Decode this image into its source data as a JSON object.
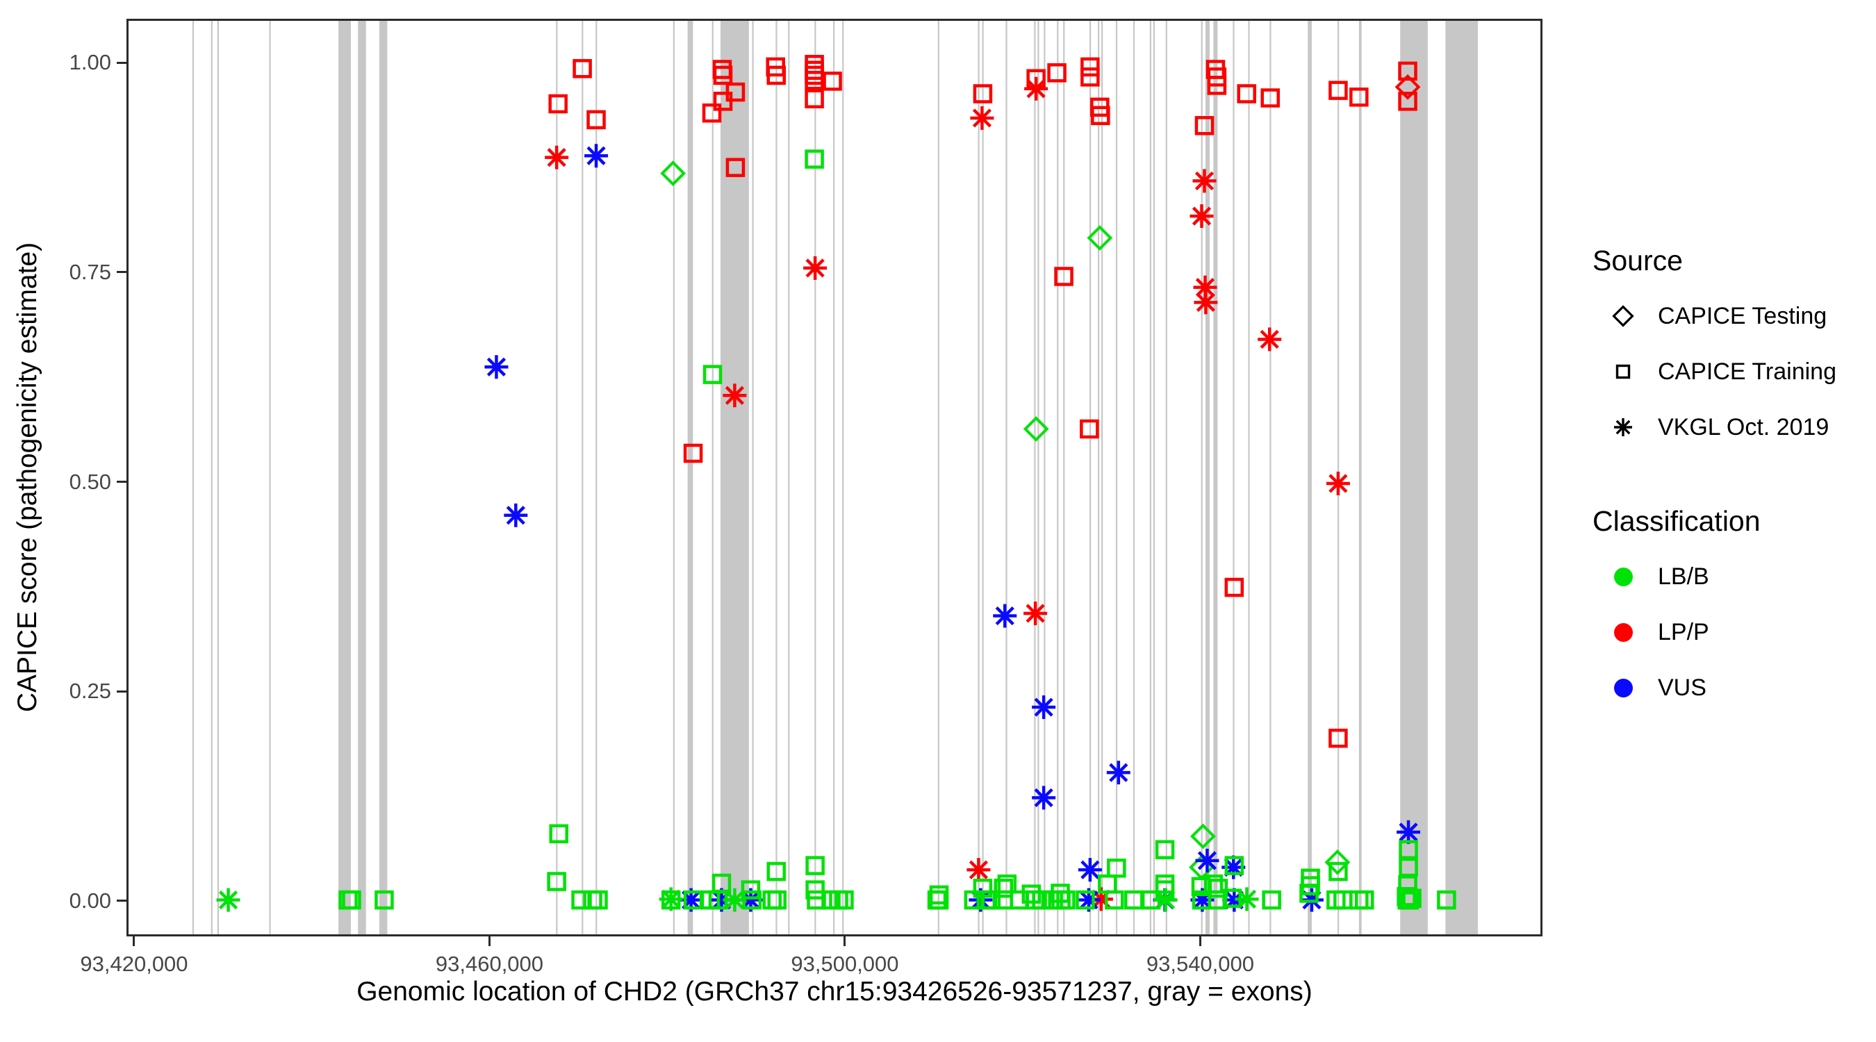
{
  "colors": {
    "lbb": "#00e108",
    "lpp": "#fc0000",
    "vus": "#0a0aff",
    "exon": "#c7c7c7",
    "axis_text": "#474747",
    "axis_line": "#2b2b2b"
  },
  "legend": {
    "source_title": "Source",
    "source_items": [
      {
        "shape": "diamond",
        "label": "CAPICE Testing"
      },
      {
        "shape": "square",
        "label": "CAPICE Training"
      },
      {
        "shape": "asterisk",
        "label": "VKGL Oct. 2019"
      }
    ],
    "classification_title": "Classification",
    "classification_items": [
      {
        "color_key": "lbb",
        "label": "LB/B"
      },
      {
        "color_key": "lpp",
        "label": "LP/P"
      },
      {
        "color_key": "vus",
        "label": "VUS"
      }
    ]
  },
  "chart_data": {
    "type": "scatter",
    "title": "",
    "xlabel": "Genomic location of CHD2 (GRCh37 chr15:93426526-93571237, gray = exons)",
    "ylabel": "CAPICE score (pathogenicity estimate)",
    "x_domain": [
      93419376,
      93578285
    ],
    "y_domain": [
      -0.04,
      1.05
    ],
    "grid": false,
    "legend_position": "right",
    "x_ticks": [
      {
        "value": 93420000,
        "label": "93,420,000"
      },
      {
        "value": 93460000,
        "label": "93,460,000"
      },
      {
        "value": 93500000,
        "label": "93,500,000"
      },
      {
        "value": 93540000,
        "label": "93,540,000"
      }
    ],
    "y_ticks": [
      {
        "value": 0.0,
        "label": "0.00"
      },
      {
        "value": 0.25,
        "label": "0.25"
      },
      {
        "value": 0.5,
        "label": "0.50"
      },
      {
        "value": 0.75,
        "label": "0.75"
      },
      {
        "value": 1.0,
        "label": "1.00"
      }
    ],
    "exon_note": "gray vertical bands = exons, [start_bp, end_bp]",
    "exons": [
      [
        93426560,
        93426710
      ],
      [
        93428660,
        93428810
      ],
      [
        93429370,
        93429520
      ],
      [
        93435210,
        93435360
      ],
      [
        93443000,
        93444400
      ],
      [
        93445200,
        93446100
      ],
      [
        93447600,
        93448500
      ],
      [
        93467490,
        93467640
      ],
      [
        93470380,
        93470530
      ],
      [
        93471940,
        93472090
      ],
      [
        93480670,
        93480820
      ],
      [
        93482300,
        93482900
      ],
      [
        93485040,
        93485190
      ],
      [
        93486000,
        93489200
      ],
      [
        93489560,
        93489710
      ],
      [
        93492210,
        93492360
      ],
      [
        93493610,
        93493760
      ],
      [
        93496580,
        93496730
      ],
      [
        93498680,
        93498830
      ],
      [
        93499700,
        93499850
      ],
      [
        93510460,
        93510610
      ],
      [
        93514980,
        93515130
      ],
      [
        93515450,
        93515600
      ],
      [
        93518100,
        93518250
      ],
      [
        93521300,
        93521450
      ],
      [
        93521690,
        93521840
      ],
      [
        93522390,
        93522540
      ],
      [
        93523870,
        93524020
      ],
      [
        93524570,
        93524720
      ],
      [
        93527530,
        93527680
      ],
      [
        93528470,
        93528620
      ],
      [
        93528860,
        93529010
      ],
      [
        93530500,
        93530650
      ],
      [
        93532450,
        93532600
      ],
      [
        93534320,
        93534470
      ],
      [
        93534710,
        93534860
      ],
      [
        93536110,
        93536260
      ],
      [
        93540090,
        93540240
      ],
      [
        93540585,
        93541050
      ],
      [
        93541480,
        93541950
      ],
      [
        93543670,
        93543820
      ],
      [
        93545390,
        93545540
      ],
      [
        93547810,
        93547960
      ],
      [
        93552100,
        93552550
      ],
      [
        93555450,
        93555600
      ],
      [
        93557860,
        93558160
      ],
      [
        93562500,
        93565600
      ],
      [
        93567600,
        93571250
      ]
    ],
    "shape_codes": {
      "d": "CAPICE Testing (diamond)",
      "s": "CAPICE Training (square)",
      "a": "VKGL Oct. 2019 (asterisk)"
    },
    "class_codes": {
      "g": "LB/B",
      "r": "LP/P",
      "b": "VUS"
    },
    "point_fields": [
      "genomic_position",
      "capice_score",
      "source_shape",
      "classification"
    ],
    "points": [
      [
        93480660,
        0.868,
        "d",
        "g"
      ],
      [
        93528690,
        0.791,
        "d",
        "g"
      ],
      [
        93521520,
        0.563,
        "d",
        "g"
      ],
      [
        93540310,
        0.077,
        "d",
        "g"
      ],
      [
        93540160,
        0.04,
        "d",
        "g"
      ],
      [
        93555440,
        0.046,
        "d",
        "g"
      ],
      [
        93563350,
        0.971,
        "d",
        "r"
      ],
      [
        93470450,
        0.993,
        "s",
        "r"
      ],
      [
        93467720,
        0.951,
        "s",
        "r"
      ],
      [
        93472010,
        0.932,
        "s",
        "r"
      ],
      [
        93485030,
        0.94,
        "s",
        "r"
      ],
      [
        93486200,
        0.992,
        "s",
        "r"
      ],
      [
        93486280,
        0.985,
        "s",
        "r"
      ],
      [
        93486280,
        0.954,
        "s",
        "r"
      ],
      [
        93487680,
        0.965,
        "s",
        "r"
      ],
      [
        93487680,
        0.875,
        "s",
        "r"
      ],
      [
        93482920,
        0.534,
        "s",
        "r"
      ],
      [
        93492200,
        0.995,
        "s",
        "r"
      ],
      [
        93492280,
        0.985,
        "s",
        "r"
      ],
      [
        93496570,
        0.998,
        "s",
        "r"
      ],
      [
        93496570,
        0.991,
        "s",
        "r"
      ],
      [
        93496570,
        0.985,
        "s",
        "r"
      ],
      [
        93496570,
        0.979,
        "s",
        "r"
      ],
      [
        93496570,
        0.957,
        "s",
        "r"
      ],
      [
        93498600,
        0.978,
        "s",
        "r"
      ],
      [
        93515520,
        0.963,
        "s",
        "r"
      ],
      [
        93521520,
        0.981,
        "s",
        "r"
      ],
      [
        93523860,
        0.988,
        "s",
        "r"
      ],
      [
        93524640,
        0.745,
        "s",
        "r"
      ],
      [
        93527600,
        0.995,
        "s",
        "r"
      ],
      [
        93527600,
        0.983,
        "s",
        "r"
      ],
      [
        93527520,
        0.563,
        "s",
        "r"
      ],
      [
        93528690,
        0.947,
        "s",
        "r"
      ],
      [
        93528770,
        0.937,
        "s",
        "r"
      ],
      [
        93540470,
        0.925,
        "s",
        "r"
      ],
      [
        93541720,
        0.992,
        "s",
        "r"
      ],
      [
        93541870,
        0.983,
        "s",
        "r"
      ],
      [
        93541870,
        0.973,
        "s",
        "r"
      ],
      [
        93543820,
        0.374,
        "s",
        "r"
      ],
      [
        93545220,
        0.963,
        "s",
        "r"
      ],
      [
        93547880,
        0.958,
        "s",
        "r"
      ],
      [
        93555520,
        0.967,
        "s",
        "r"
      ],
      [
        93555520,
        0.194,
        "s",
        "r"
      ],
      [
        93557860,
        0.959,
        "s",
        "r"
      ],
      [
        93563350,
        0.99,
        "s",
        "r"
      ],
      [
        93563350,
        0.954,
        "s",
        "r"
      ],
      [
        93467560,
        0.887,
        "a",
        "r"
      ],
      [
        93487600,
        0.603,
        "a",
        "r"
      ],
      [
        93496650,
        0.755,
        "a",
        "r"
      ],
      [
        93515440,
        0.934,
        "a",
        "r"
      ],
      [
        93521520,
        0.969,
        "a",
        "r"
      ],
      [
        93521440,
        0.343,
        "a",
        "r"
      ],
      [
        93515050,
        0.037,
        "a",
        "r"
      ],
      [
        93528850,
        0.002,
        "a",
        "r"
      ],
      [
        93540470,
        0.859,
        "a",
        "r"
      ],
      [
        93540160,
        0.817,
        "a",
        "r"
      ],
      [
        93540550,
        0.732,
        "a",
        "r"
      ],
      [
        93540620,
        0.714,
        "a",
        "r"
      ],
      [
        93547800,
        0.67,
        "a",
        "r"
      ],
      [
        93555520,
        0.498,
        "a",
        "r"
      ],
      [
        93472010,
        0.889,
        "a",
        "b"
      ],
      [
        93460780,
        0.637,
        "a",
        "b"
      ],
      [
        93462960,
        0.46,
        "a",
        "b"
      ],
      [
        93518010,
        0.34,
        "a",
        "b"
      ],
      [
        93522380,
        0.231,
        "a",
        "b"
      ],
      [
        93530800,
        0.153,
        "a",
        "b"
      ],
      [
        93522380,
        0.123,
        "a",
        "b"
      ],
      [
        93563430,
        0.082,
        "a",
        "b"
      ],
      [
        93540780,
        0.048,
        "a",
        "b"
      ],
      [
        93543740,
        0.04,
        "a",
        "b"
      ],
      [
        93527600,
        0.037,
        "a",
        "b"
      ],
      [
        93482690,
        0.001,
        "a",
        "b"
      ],
      [
        93486120,
        0.001,
        "a",
        "b"
      ],
      [
        93489400,
        0.001,
        "a",
        "b"
      ],
      [
        93515280,
        0.001,
        "a",
        "b"
      ],
      [
        93527450,
        0.001,
        "a",
        "b"
      ],
      [
        93536020,
        0.001,
        "a",
        "b"
      ],
      [
        93540230,
        0.001,
        "a",
        "b"
      ],
      [
        93543820,
        0.001,
        "a",
        "b"
      ],
      [
        93552550,
        0.001,
        "a",
        "b"
      ],
      [
        93430600,
        0.001,
        "a",
        "g"
      ],
      [
        93480430,
        0.002,
        "a",
        "g"
      ],
      [
        93487600,
        0.001,
        "a",
        "g"
      ],
      [
        93536100,
        0.001,
        "a",
        "g"
      ],
      [
        93545240,
        0.002,
        "a",
        "g"
      ],
      [
        93496570,
        0.885,
        "s",
        "g"
      ],
      [
        93485110,
        0.628,
        "s",
        "g"
      ],
      [
        93467800,
        0.08,
        "s",
        "g"
      ],
      [
        93467560,
        0.023,
        "s",
        "g"
      ],
      [
        93486120,
        0.021,
        "s",
        "g"
      ],
      [
        93489400,
        0.013,
        "s",
        "g"
      ],
      [
        93492280,
        0.035,
        "s",
        "g"
      ],
      [
        93496650,
        0.042,
        "s",
        "g"
      ],
      [
        93496650,
        0.013,
        "s",
        "g"
      ],
      [
        93510600,
        0.007,
        "s",
        "g"
      ],
      [
        93515520,
        0.015,
        "s",
        "g"
      ],
      [
        93517860,
        0.015,
        "s",
        "g"
      ],
      [
        93518250,
        0.02,
        "s",
        "g"
      ],
      [
        93520980,
        0.008,
        "s",
        "g"
      ],
      [
        93524250,
        0.009,
        "s",
        "g"
      ],
      [
        93529550,
        0.02,
        "s",
        "g"
      ],
      [
        93530570,
        0.039,
        "s",
        "g"
      ],
      [
        93536020,
        0.061,
        "s",
        "g"
      ],
      [
        93536020,
        0.02,
        "s",
        "g"
      ],
      [
        93536020,
        0.013,
        "s",
        "g"
      ],
      [
        93540080,
        0.017,
        "s",
        "g"
      ],
      [
        93541480,
        0.02,
        "s",
        "g"
      ],
      [
        93542030,
        0.015,
        "s",
        "g"
      ],
      [
        93543590,
        0.003,
        "s",
        "g"
      ],
      [
        93543820,
        0.042,
        "s",
        "g"
      ],
      [
        93552400,
        0.027,
        "s",
        "g"
      ],
      [
        93552400,
        0.018,
        "s",
        "g"
      ],
      [
        93552240,
        0.009,
        "s",
        "g"
      ],
      [
        93555520,
        0.035,
        "s",
        "g"
      ],
      [
        93563430,
        0.061,
        "s",
        "g"
      ],
      [
        93563430,
        0.04,
        "s",
        "g"
      ],
      [
        93563350,
        0.019,
        "s",
        "g"
      ],
      [
        93563820,
        0.003,
        "s",
        "g"
      ],
      [
        93563200,
        0.005,
        "s",
        "g"
      ],
      [
        93444090,
        0.001,
        "s",
        "g"
      ],
      [
        93444480,
        0.001,
        "s",
        "g"
      ],
      [
        93448150,
        0.001,
        "s",
        "g"
      ],
      [
        93470290,
        0.001,
        "s",
        "g"
      ],
      [
        93471620,
        0.001,
        "s",
        "g"
      ],
      [
        93472240,
        0.001,
        "s",
        "g"
      ],
      [
        93480430,
        0.001,
        "s",
        "g"
      ],
      [
        93482920,
        0.001,
        "s",
        "g"
      ],
      [
        93484870,
        0.001,
        "s",
        "g"
      ],
      [
        93485730,
        0.001,
        "s",
        "g"
      ],
      [
        93489550,
        0.001,
        "s",
        "g"
      ],
      [
        93491810,
        0.001,
        "s",
        "g"
      ],
      [
        93492360,
        0.001,
        "s",
        "g"
      ],
      [
        93496800,
        0.001,
        "s",
        "g"
      ],
      [
        93498440,
        0.001,
        "s",
        "g"
      ],
      [
        93499300,
        0.001,
        "s",
        "g"
      ],
      [
        93499920,
        0.001,
        "s",
        "g"
      ],
      [
        93510370,
        0.001,
        "s",
        "g"
      ],
      [
        93510600,
        0.001,
        "s",
        "g"
      ],
      [
        93514500,
        0.001,
        "s",
        "g"
      ],
      [
        93515910,
        0.001,
        "s",
        "g"
      ],
      [
        93516450,
        0.001,
        "s",
        "g"
      ],
      [
        93517860,
        0.001,
        "s",
        "g"
      ],
      [
        93519650,
        0.001,
        "s",
        "g"
      ],
      [
        93521370,
        0.001,
        "s",
        "g"
      ],
      [
        93522150,
        0.001,
        "s",
        "g"
      ],
      [
        93523470,
        0.001,
        "s",
        "g"
      ],
      [
        93524330,
        0.001,
        "s",
        "g"
      ],
      [
        93524870,
        0.001,
        "s",
        "g"
      ],
      [
        93527060,
        0.001,
        "s",
        "g"
      ],
      [
        93530330,
        0.001,
        "s",
        "g"
      ],
      [
        93532520,
        0.001,
        "s",
        "g"
      ],
      [
        93534460,
        0.001,
        "s",
        "g"
      ],
      [
        93540160,
        0.001,
        "s",
        "g"
      ],
      [
        93541950,
        0.001,
        "s",
        "g"
      ],
      [
        93548030,
        0.001,
        "s",
        "g"
      ],
      [
        93555280,
        0.001,
        "s",
        "g"
      ],
      [
        93556060,
        0.001,
        "s",
        "g"
      ],
      [
        93557860,
        0.001,
        "s",
        "g"
      ],
      [
        93558480,
        0.001,
        "s",
        "g"
      ],
      [
        93563280,
        0.001,
        "s",
        "g"
      ],
      [
        93563540,
        0.001,
        "s",
        "g"
      ],
      [
        93567720,
        0.001,
        "s",
        "g"
      ]
    ]
  }
}
